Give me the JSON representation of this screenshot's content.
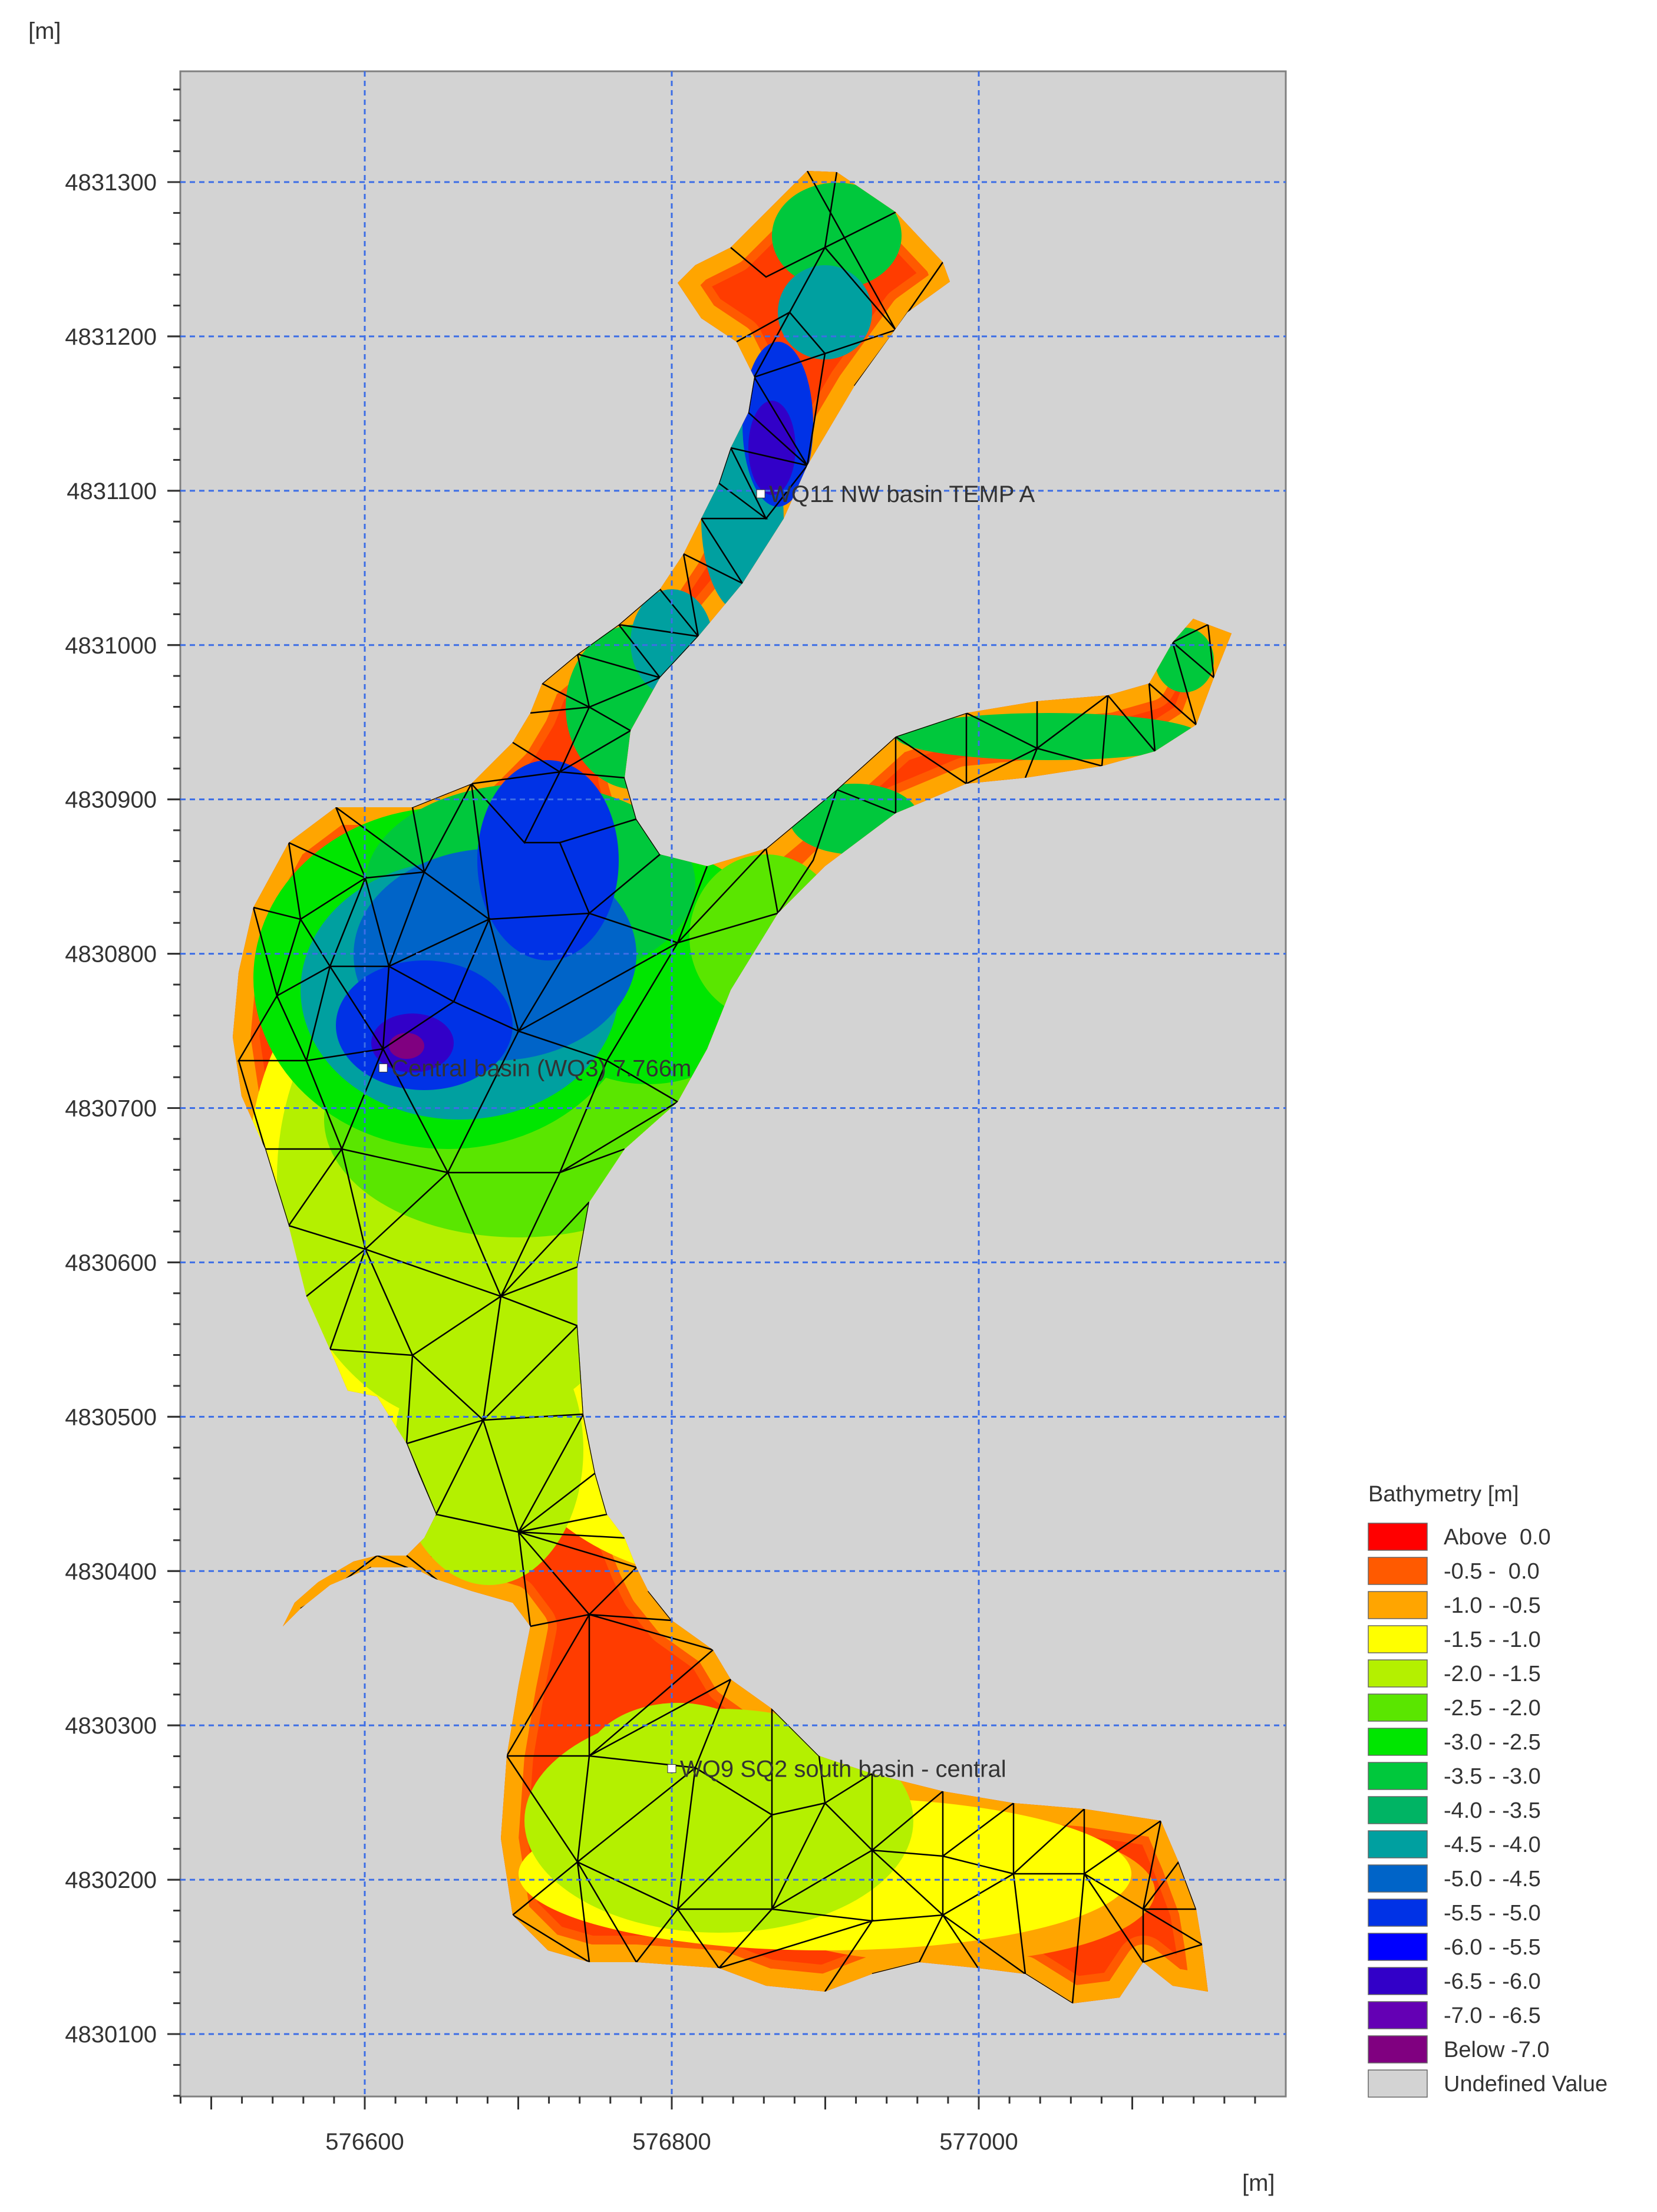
{
  "y_unit_label": "[m]",
  "x_unit_label": "[m]",
  "x_ticks": [
    {
      "label": "576600",
      "value": 576600
    },
    {
      "label": "576800",
      "value": 576800
    },
    {
      "label": "577000",
      "value": 577000
    }
  ],
  "y_ticks": [
    {
      "label": "4831300",
      "value": 4831300
    },
    {
      "label": "4831200",
      "value": 4831200
    },
    {
      "label": "4831100",
      "value": 4831100
    },
    {
      "label": "4831000",
      "value": 4831000
    },
    {
      "label": "4830900",
      "value": 4830900
    },
    {
      "label": "4830800",
      "value": 4830800
    },
    {
      "label": "4830700",
      "value": 4830700
    },
    {
      "label": "4830600",
      "value": 4830600
    },
    {
      "label": "4830500",
      "value": 4830500
    },
    {
      "label": "4830400",
      "value": 4830400
    },
    {
      "label": "4830300",
      "value": 4830300
    },
    {
      "label": "4830200",
      "value": 4830200
    },
    {
      "label": "4830100",
      "value": 4830100
    }
  ],
  "stations": [
    {
      "label": "WQ11 NW basin TEMP A",
      "x": 576858,
      "y": 4831098
    },
    {
      "label": "Central basin (WQ3) 7.766m",
      "x": 576612,
      "y": 4830726
    },
    {
      "label": "WQ9 SQ2 south basin - central",
      "x": 576800,
      "y": 4830272
    }
  ],
  "legend": {
    "title": "Bathymetry [m]",
    "items": [
      {
        "label": "Above  0.0",
        "color": "#ff0000"
      },
      {
        "label": "-0.5 -  0.0",
        "color": "#ff5a00"
      },
      {
        "label": "-1.0 - -0.5",
        "color": "#ffa500"
      },
      {
        "label": "-1.5 - -1.0",
        "color": "#ffff00"
      },
      {
        "label": "-2.0 - -1.5",
        "color": "#b4f000"
      },
      {
        "label": "-2.5 - -2.0",
        "color": "#5ae600"
      },
      {
        "label": "-3.0 - -2.5",
        "color": "#00e600"
      },
      {
        "label": "-3.5 - -3.0",
        "color": "#00c83c"
      },
      {
        "label": "-4.0 - -3.5",
        "color": "#00b464"
      },
      {
        "label": "-4.5 - -4.0",
        "color": "#00a0a0"
      },
      {
        "label": "-5.0 - -4.5",
        "color": "#0064c8"
      },
      {
        "label": "-5.5 - -5.0",
        "color": "#0032e6"
      },
      {
        "label": "-6.0 - -5.5",
        "color": "#0000ff"
      },
      {
        "label": "-6.5 - -6.0",
        "color": "#3200c8"
      },
      {
        "label": "-7.0 - -6.5",
        "color": "#6400b4"
      },
      {
        "label": "Below -7.0",
        "color": "#800080"
      },
      {
        "label": "Undefined Value",
        "color": "#d3d3d3"
      }
    ]
  },
  "colors": {
    "plot_background": "#d3d3d3",
    "grid": "#3c6ee6",
    "mesh": "#000000"
  }
}
